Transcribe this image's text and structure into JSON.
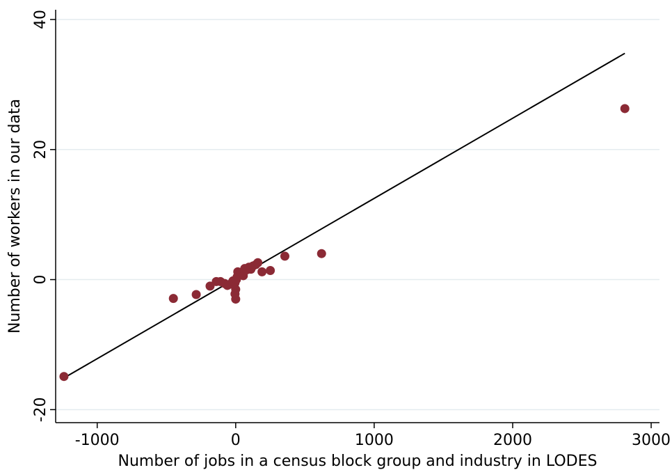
{
  "chart_data": {
    "type": "scatter",
    "title": "",
    "xlabel": "Number of jobs in a census block group and industry in LODES",
    "ylabel": "Number of workers in our data",
    "xlim": [
      -1300,
      3060
    ],
    "ylim": [
      -22,
      41.5
    ],
    "xticks": [
      -1000,
      0,
      1000,
      2000,
      3000
    ],
    "xtick_labels": [
      "-1000",
      "0",
      "1000",
      "2000",
      "3000"
    ],
    "yticks": [
      -20,
      0,
      20,
      40
    ],
    "ytick_labels": [
      "-20",
      "0",
      "20",
      "40"
    ],
    "grid": "horizontal",
    "legend": "none",
    "colors": {
      "marker": "#8b2a35",
      "fit_line": "#000000",
      "grid": "#e4ecef",
      "axis": "#000000"
    },
    "fit_line": {
      "x": [
        -1230,
        2810
      ],
      "y": [
        -15.0,
        34.8
      ]
    },
    "points": [
      {
        "x": -1240,
        "y": -14.9
      },
      {
        "x": 2810,
        "y": 26.3
      },
      {
        "x": 620,
        "y": 4.0
      },
      {
        "x": 355,
        "y": 3.6
      },
      {
        "x": -450,
        "y": -2.9
      },
      {
        "x": -285,
        "y": -2.3
      },
      {
        "x": -185,
        "y": -1.0
      },
      {
        "x": -140,
        "y": -0.3
      },
      {
        "x": -110,
        "y": -0.3
      },
      {
        "x": -80,
        "y": -0.6
      },
      {
        "x": -60,
        "y": -0.9
      },
      {
        "x": -40,
        "y": -0.7
      },
      {
        "x": -20,
        "y": -0.2
      },
      {
        "x": -5,
        "y": -0.5
      },
      {
        "x": 10,
        "y": 0.4
      },
      {
        "x": 15,
        "y": 1.2
      },
      {
        "x": 25,
        "y": 0.8
      },
      {
        "x": 40,
        "y": 1.1
      },
      {
        "x": 55,
        "y": 0.6
      },
      {
        "x": 65,
        "y": 1.7
      },
      {
        "x": 80,
        "y": 1.5
      },
      {
        "x": 95,
        "y": 1.9
      },
      {
        "x": 110,
        "y": 1.6
      },
      {
        "x": 125,
        "y": 2.1
      },
      {
        "x": 145,
        "y": 2.3
      },
      {
        "x": 160,
        "y": 2.6
      },
      {
        "x": 190,
        "y": 1.2
      },
      {
        "x": 250,
        "y": 1.4
      },
      {
        "x": 0,
        "y": -1.5
      },
      {
        "x": -5,
        "y": -2.2
      },
      {
        "x": 0,
        "y": -3.0
      },
      {
        "x": 5,
        "y": 0.0
      }
    ]
  }
}
